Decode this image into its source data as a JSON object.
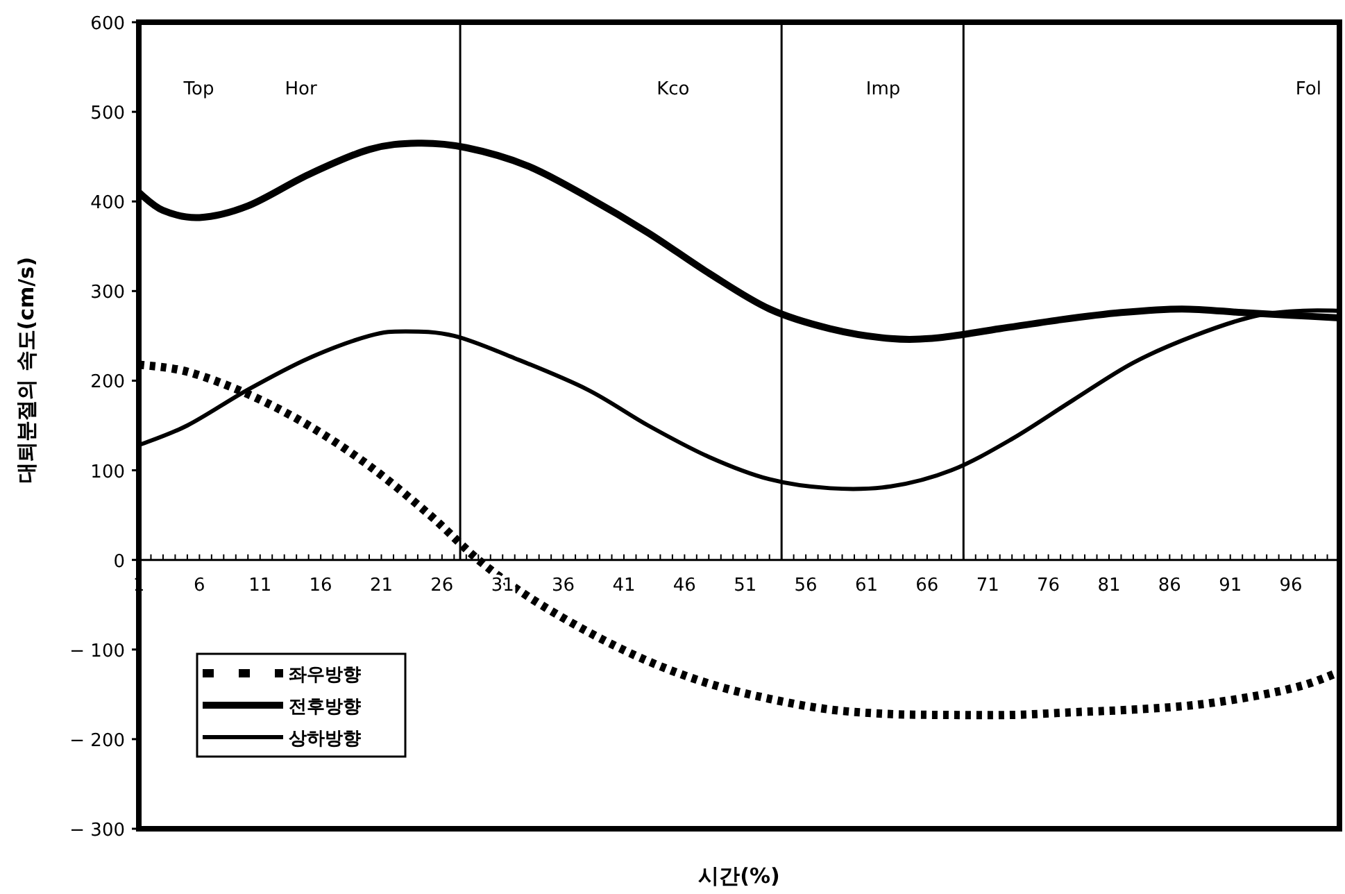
{
  "chart_data": {
    "type": "line",
    "xlabel": "시간(%)",
    "ylabel": "대퇴분절의 속도(cm/s)",
    "xlim": [
      1,
      100
    ],
    "xticks": [
      1,
      6,
      11,
      16,
      21,
      26,
      31,
      36,
      41,
      46,
      51,
      56,
      61,
      66,
      71,
      76,
      81,
      86,
      91,
      96
    ],
    "ylim": [
      -300,
      600
    ],
    "yticks": [
      -300,
      -200,
      -100,
      0,
      100,
      200,
      300,
      400,
      500,
      600
    ],
    "grid": false,
    "legend": "bottom left",
    "marker": "none",
    "ref_lines": [
      {
        "axis": "x",
        "value": 27.5,
        "color": "#000000"
      },
      {
        "axis": "x",
        "value": 54,
        "color": "#000000"
      },
      {
        "axis": "x",
        "value": 69,
        "color": "#000000"
      }
    ],
    "annotations": [
      "Top",
      "Hor",
      "Kco",
      "Imp",
      "Fol"
    ],
    "series": [
      {
        "name": "좌우방향",
        "color": "#000000",
        "line_style": "dotted",
        "x": [
          1,
          5,
          10,
          15,
          20,
          25,
          29,
          33,
          38,
          43,
          48,
          53,
          58,
          63,
          68,
          73,
          78,
          83,
          88,
          93,
          97,
          100
        ],
        "values": [
          218,
          210,
          185,
          150,
          105,
          50,
          0,
          -40,
          -80,
          -113,
          -138,
          -155,
          -167,
          -172,
          -173,
          -173,
          -170,
          -167,
          -162,
          -152,
          -140,
          -125
        ]
      },
      {
        "name": "전후방향",
        "color": "#000000",
        "line_style": "solid",
        "x": [
          1,
          3,
          6,
          10,
          15,
          20,
          24,
          28,
          33,
          38,
          43,
          48,
          53,
          58,
          63,
          67,
          72,
          77,
          82,
          87,
          92,
          96,
          100
        ],
        "values": [
          410,
          390,
          382,
          395,
          430,
          458,
          465,
          460,
          440,
          405,
          365,
          320,
          280,
          258,
          247,
          248,
          258,
          268,
          276,
          280,
          276,
          273,
          270
        ]
      },
      {
        "name": "상하방향",
        "color": "#000000",
        "line_style": "solid",
        "x": [
          1,
          5,
          10,
          15,
          20,
          23,
          27,
          32,
          38,
          43,
          48,
          53,
          58,
          63,
          68,
          73,
          78,
          83,
          88,
          93,
          97,
          100
        ],
        "values": [
          128,
          150,
          190,
          225,
          250,
          255,
          250,
          225,
          190,
          150,
          115,
          90,
          80,
          82,
          100,
          135,
          178,
          220,
          250,
          272,
          278,
          278
        ]
      }
    ]
  }
}
